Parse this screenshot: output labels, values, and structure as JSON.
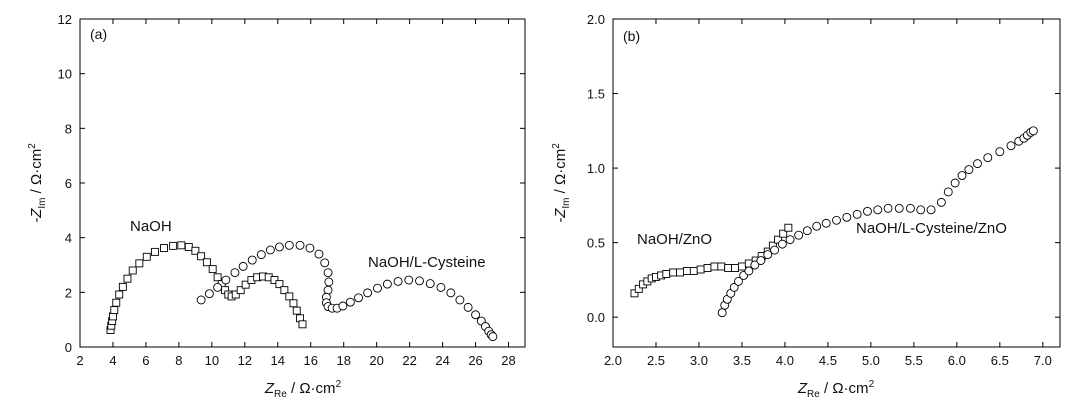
{
  "chart_data": [
    {
      "type": "scatter",
      "panel_label": "(a)",
      "xlabel_main": "Z",
      "xlabel_sub": "Re",
      "xlabel_unit": " / Ω·cm",
      "xlabel_sup": "2",
      "ylabel_main": "-Z",
      "ylabel_sub": "Im",
      "ylabel_unit": " / Ω·cm",
      "ylabel_sup": "2",
      "xlim": [
        2,
        29
      ],
      "ylim": [
        0,
        12
      ],
      "xticks": [
        2,
        4,
        6,
        8,
        10,
        12,
        14,
        16,
        18,
        20,
        22,
        24,
        26,
        28
      ],
      "yticks": [
        0,
        2,
        4,
        6,
        8,
        10,
        12
      ],
      "series": [
        {
          "name": "NaOH",
          "marker": "square",
          "points": [
            [
              3.85,
              0.62
            ],
            [
              3.9,
              0.78
            ],
            [
              3.95,
              0.95
            ],
            [
              4.0,
              1.12
            ],
            [
              4.08,
              1.35
            ],
            [
              4.2,
              1.62
            ],
            [
              4.38,
              1.92
            ],
            [
              4.6,
              2.2
            ],
            [
              4.88,
              2.5
            ],
            [
              5.2,
              2.8
            ],
            [
              5.6,
              3.06
            ],
            [
              6.05,
              3.3
            ],
            [
              6.55,
              3.48
            ],
            [
              7.1,
              3.62
            ],
            [
              7.65,
              3.7
            ],
            [
              8.15,
              3.72
            ],
            [
              8.6,
              3.66
            ],
            [
              9.0,
              3.52
            ],
            [
              9.35,
              3.32
            ],
            [
              9.7,
              3.1
            ],
            [
              10.05,
              2.85
            ],
            [
              10.35,
              2.55
            ],
            [
              10.6,
              2.3
            ],
            [
              10.8,
              2.08
            ],
            [
              11.0,
              1.92
            ],
            [
              11.2,
              1.85
            ],
            [
              11.45,
              1.92
            ],
            [
              11.75,
              2.08
            ],
            [
              12.05,
              2.28
            ],
            [
              12.4,
              2.45
            ],
            [
              12.75,
              2.55
            ],
            [
              13.1,
              2.58
            ],
            [
              13.45,
              2.55
            ],
            [
              13.8,
              2.45
            ],
            [
              14.1,
              2.3
            ],
            [
              14.4,
              2.08
            ],
            [
              14.7,
              1.85
            ],
            [
              14.95,
              1.6
            ],
            [
              15.15,
              1.33
            ],
            [
              15.35,
              1.05
            ],
            [
              15.5,
              0.83
            ]
          ]
        },
        {
          "name": "NaOH/L-Cysteine",
          "marker": "circle",
          "points": [
            [
              9.35,
              1.72
            ],
            [
              9.85,
              1.95
            ],
            [
              10.35,
              2.18
            ],
            [
              10.85,
              2.45
            ],
            [
              11.4,
              2.72
            ],
            [
              11.9,
              2.95
            ],
            [
              12.45,
              3.18
            ],
            [
              13.0,
              3.38
            ],
            [
              13.55,
              3.55
            ],
            [
              14.1,
              3.66
            ],
            [
              14.7,
              3.72
            ],
            [
              15.35,
              3.72
            ],
            [
              15.95,
              3.62
            ],
            [
              16.5,
              3.4
            ],
            [
              16.85,
              3.08
            ],
            [
              17.05,
              2.72
            ],
            [
              17.1,
              2.38
            ],
            [
              17.05,
              2.08
            ],
            [
              16.95,
              1.82
            ],
            [
              16.95,
              1.62
            ],
            [
              17.05,
              1.48
            ],
            [
              17.3,
              1.42
            ],
            [
              17.6,
              1.42
            ],
            [
              17.95,
              1.5
            ],
            [
              18.4,
              1.64
            ],
            [
              18.9,
              1.8
            ],
            [
              19.45,
              1.98
            ],
            [
              20.05,
              2.15
            ],
            [
              20.65,
              2.3
            ],
            [
              21.3,
              2.4
            ],
            [
              21.95,
              2.45
            ],
            [
              22.6,
              2.42
            ],
            [
              23.25,
              2.32
            ],
            [
              23.9,
              2.18
            ],
            [
              24.5,
              1.98
            ],
            [
              25.05,
              1.72
            ],
            [
              25.55,
              1.45
            ],
            [
              26.0,
              1.18
            ],
            [
              26.35,
              0.95
            ],
            [
              26.6,
              0.75
            ],
            [
              26.8,
              0.58
            ],
            [
              26.95,
              0.45
            ],
            [
              27.05,
              0.38
            ]
          ]
        }
      ],
      "annotations": [
        "NaOH",
        "NaOH/L-Cysteine"
      ]
    },
    {
      "type": "scatter",
      "panel_label": "(b)",
      "xlabel_main": "Z",
      "xlabel_sub": "Re",
      "xlabel_unit": " / Ω·cm",
      "xlabel_sup": "2",
      "ylabel_main": "-Z",
      "ylabel_sub": "Im",
      "ylabel_unit": " / Ω·cm",
      "ylabel_sup": "2",
      "xlim": [
        2.0,
        7.2
      ],
      "ylim": [
        -0.2,
        2.0
      ],
      "xticks": [
        "2.0",
        "2.5",
        "3.0",
        "3.5",
        "4.0",
        "4.5",
        "5.0",
        "5.5",
        "6.0",
        "6.5",
        "7.0"
      ],
      "yticks": [
        "0.0",
        "0.5",
        "1.0",
        "1.5",
        "2.0"
      ],
      "series": [
        {
          "name": "NaOH/ZnO",
          "marker": "square",
          "points": [
            [
              2.25,
              0.16
            ],
            [
              2.3,
              0.19
            ],
            [
              2.35,
              0.22
            ],
            [
              2.4,
              0.24
            ],
            [
              2.45,
              0.26
            ],
            [
              2.5,
              0.27
            ],
            [
              2.56,
              0.28
            ],
            [
              2.62,
              0.29
            ],
            [
              2.7,
              0.3
            ],
            [
              2.78,
              0.3
            ],
            [
              2.86,
              0.31
            ],
            [
              2.94,
              0.31
            ],
            [
              3.02,
              0.32
            ],
            [
              3.1,
              0.33
            ],
            [
              3.18,
              0.34
            ],
            [
              3.26,
              0.34
            ],
            [
              3.34,
              0.33
            ],
            [
              3.42,
              0.33
            ],
            [
              3.5,
              0.34
            ],
            [
              3.58,
              0.36
            ],
            [
              3.66,
              0.38
            ],
            [
              3.73,
              0.41
            ],
            [
              3.8,
              0.44
            ],
            [
              3.86,
              0.48
            ],
            [
              3.92,
              0.52
            ],
            [
              3.98,
              0.56
            ],
            [
              4.04,
              0.6
            ]
          ]
        },
        {
          "name": "NaOH/L-Cysteine/ZnO",
          "marker": "circle",
          "points": [
            [
              3.27,
              0.03
            ],
            [
              3.3,
              0.08
            ],
            [
              3.33,
              0.12
            ],
            [
              3.37,
              0.16
            ],
            [
              3.41,
              0.2
            ],
            [
              3.46,
              0.24
            ],
            [
              3.52,
              0.28
            ],
            [
              3.58,
              0.31
            ],
            [
              3.65,
              0.35
            ],
            [
              3.72,
              0.38
            ],
            [
              3.8,
              0.42
            ],
            [
              3.88,
              0.45
            ],
            [
              3.97,
              0.49
            ],
            [
              4.06,
              0.52
            ],
            [
              4.16,
              0.55
            ],
            [
              4.26,
              0.58
            ],
            [
              4.37,
              0.61
            ],
            [
              4.48,
              0.63
            ],
            [
              4.6,
              0.65
            ],
            [
              4.72,
              0.67
            ],
            [
              4.84,
              0.69
            ],
            [
              4.96,
              0.71
            ],
            [
              5.08,
              0.72
            ],
            [
              5.2,
              0.73
            ],
            [
              5.33,
              0.73
            ],
            [
              5.46,
              0.73
            ],
            [
              5.58,
              0.72
            ],
            [
              5.7,
              0.72
            ],
            [
              5.82,
              0.77
            ],
            [
              5.9,
              0.84
            ],
            [
              5.98,
              0.9
            ],
            [
              6.06,
              0.95
            ],
            [
              6.14,
              0.99
            ],
            [
              6.24,
              1.03
            ],
            [
              6.36,
              1.07
            ],
            [
              6.5,
              1.11
            ],
            [
              6.63,
              1.15
            ],
            [
              6.72,
              1.18
            ],
            [
              6.78,
              1.2
            ],
            [
              6.82,
              1.22
            ],
            [
              6.86,
              1.24
            ],
            [
              6.89,
              1.25
            ]
          ]
        }
      ],
      "annotations": [
        "NaOH/ZnO",
        "NaOH/L-Cysteine/ZnO"
      ]
    }
  ]
}
